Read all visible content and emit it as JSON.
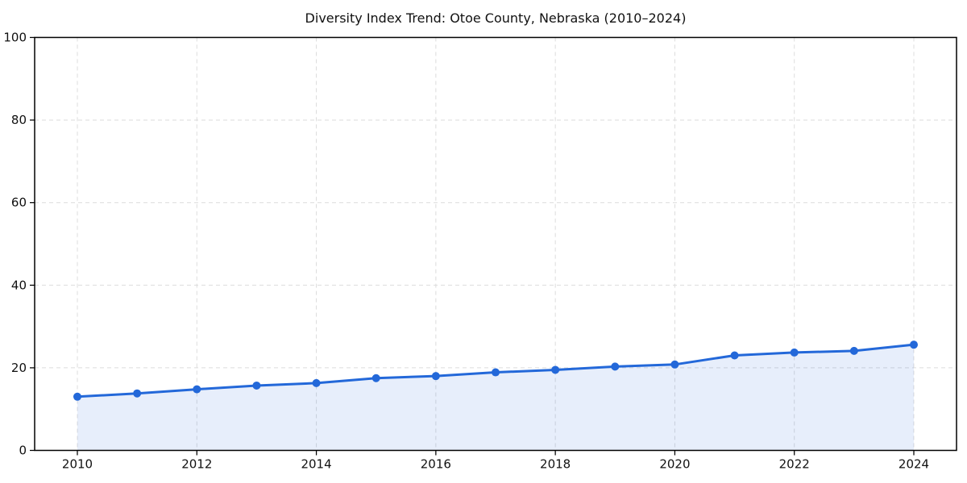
{
  "chart_data": {
    "type": "line",
    "title": "Diversity Index Trend: Otoe County, Nebraska (2010–2024)",
    "x": [
      2010,
      2011,
      2012,
      2013,
      2014,
      2015,
      2016,
      2017,
      2018,
      2019,
      2020,
      2021,
      2022,
      2023,
      2024
    ],
    "series": [
      {
        "name": "Diversity Index",
        "values": [
          13.0,
          13.8,
          14.8,
          15.7,
          16.3,
          17.5,
          18.0,
          18.9,
          19.5,
          20.3,
          20.8,
          23.0,
          23.7,
          24.1,
          25.6
        ]
      }
    ],
    "xlabel": "",
    "ylabel": "",
    "ylim": [
      0,
      100
    ],
    "yticks": [
      0,
      20,
      40,
      60,
      80,
      100
    ],
    "xticks": [
      2010,
      2012,
      2014,
      2016,
      2018,
      2020,
      2022,
      2024
    ],
    "grid": true,
    "grid_style": "dashed",
    "legend": "none",
    "marker": "circle",
    "area_fill": true,
    "colors": {
      "line": "#2368d9",
      "marker": "#2368d9",
      "area": "#2368d9",
      "grid": "#dcdcdc",
      "spine": "#000000",
      "text": "#111111",
      "background": "#ffffff"
    },
    "area_opacity": 0.11
  }
}
